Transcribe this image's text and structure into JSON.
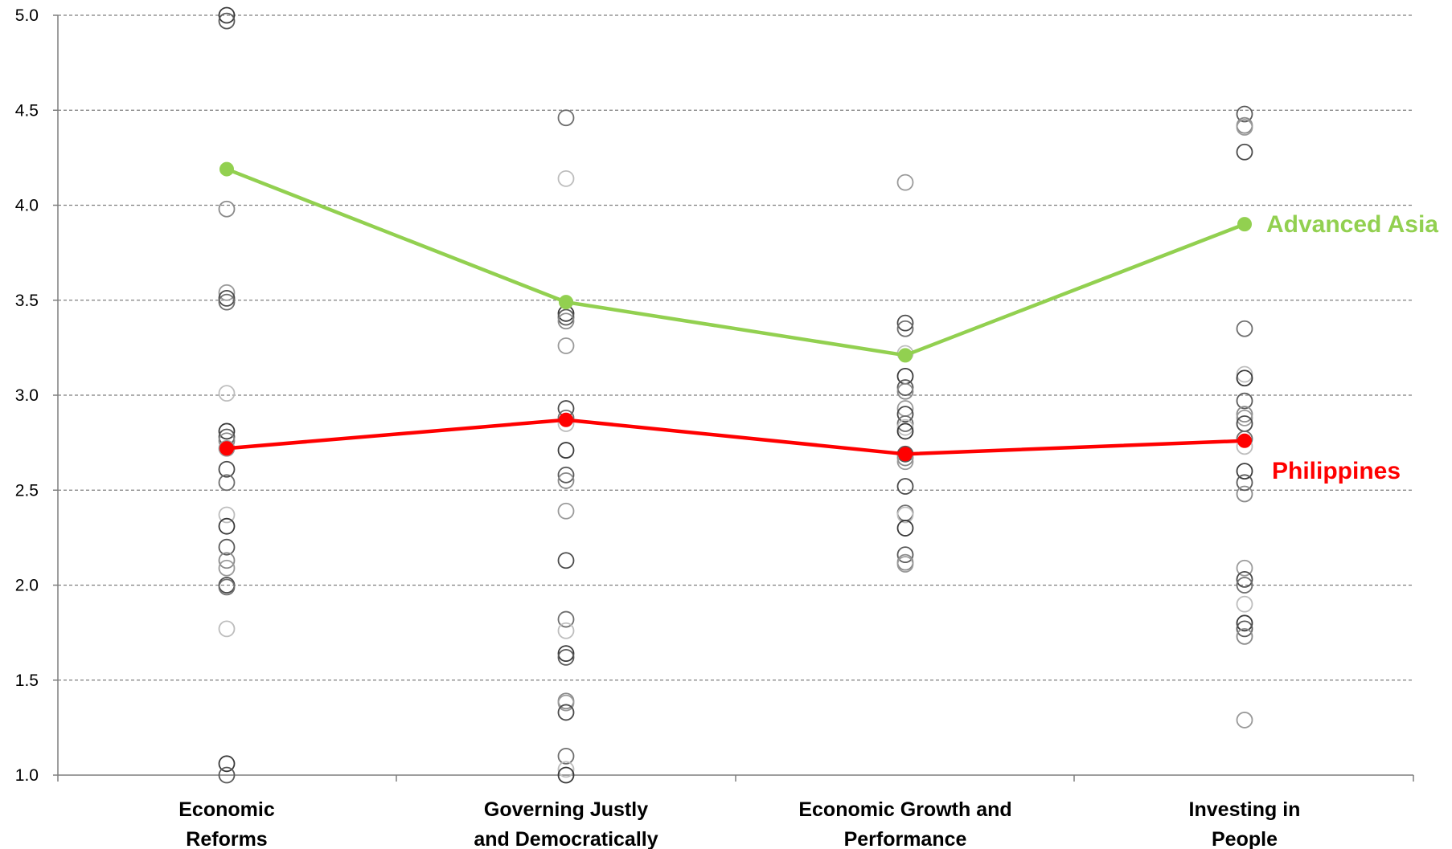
{
  "chart_data": {
    "type": "line",
    "categories": [
      [
        "Economic",
        "Reforms"
      ],
      [
        "Governing Justly",
        "and Democratically"
      ],
      [
        "Economic  Growth and",
        "Performance"
      ],
      [
        "Investing in",
        "People"
      ]
    ],
    "ylim": [
      1.0,
      5.0
    ],
    "yticks": [
      "1.0",
      "1.5",
      "2.0",
      "2.5",
      "3.0",
      "3.5",
      "4.0",
      "4.5",
      "5.0"
    ],
    "grid": true,
    "series": [
      {
        "name": "Advanced Asia",
        "values": [
          4.19,
          3.49,
          3.21,
          3.9
        ],
        "color": "#92d050"
      },
      {
        "name": "Philippines",
        "values": [
          2.72,
          2.87,
          2.69,
          2.76
        ],
        "color": "#ff0000"
      }
    ],
    "scatter_points": [
      [
        5.0,
        4.97,
        3.98,
        3.54,
        3.51,
        3.49,
        3.01,
        2.81,
        2.78,
        2.76,
        2.72,
        2.61,
        2.54,
        2.37,
        2.31,
        2.2,
        2.13,
        2.09,
        2.0,
        1.99,
        1.77,
        1.06,
        1.0
      ],
      [
        4.46,
        4.14,
        3.43,
        3.41,
        3.39,
        3.26,
        2.93,
        2.88,
        2.85,
        2.71,
        2.58,
        2.55,
        2.39,
        2.13,
        1.82,
        1.76,
        1.64,
        1.62,
        1.39,
        1.38,
        1.33,
        1.1,
        1.03,
        1.0
      ],
      [
        4.12,
        3.38,
        3.35,
        3.22,
        3.1,
        3.04,
        3.02,
        2.93,
        2.9,
        2.85,
        2.83,
        2.81,
        2.69,
        2.67,
        2.65,
        2.52,
        2.38,
        2.37,
        2.3,
        2.16,
        2.12,
        2.11
      ],
      [
        4.48,
        4.42,
        4.41,
        4.28,
        3.35,
        3.11,
        3.09,
        2.97,
        2.9,
        2.88,
        2.85,
        2.77,
        2.73,
        2.6,
        2.54,
        2.48,
        2.09,
        2.03,
        2.0,
        1.9,
        1.8,
        1.77,
        1.73,
        1.29
      ]
    ]
  }
}
